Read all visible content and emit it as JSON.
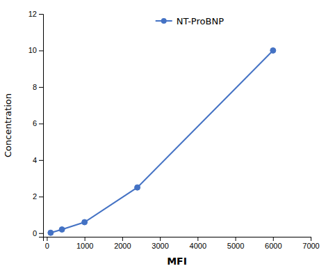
{
  "chart_data": {
    "type": "line",
    "x": [
      100,
      400,
      1000,
      2400,
      6000
    ],
    "series": [
      {
        "name": "NT-ProBNP",
        "color": "#4472C4",
        "marker": "circle",
        "values": [
          0.02,
          0.2,
          0.6,
          2.5,
          10.0
        ]
      }
    ],
    "xlabel": "MFI",
    "ylabel": "Concentration",
    "xlim": [
      -100,
      7000
    ],
    "ylim": [
      -0.2,
      12
    ],
    "xticks": [
      0,
      1000,
      2000,
      3000,
      4000,
      5000,
      6000,
      7000
    ],
    "yticks": [
      0,
      2,
      4,
      6,
      8,
      10,
      12
    ],
    "grid": false,
    "legend": "top"
  }
}
